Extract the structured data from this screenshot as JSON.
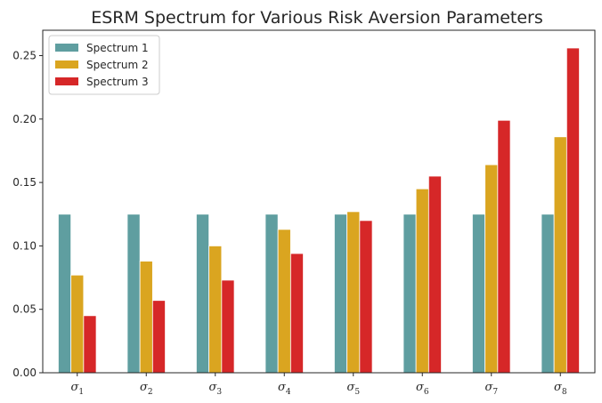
{
  "chart_data": {
    "type": "bar",
    "title": "ESRM Spectrum for Various Risk Aversion Parameters",
    "xlabel": "",
    "ylabel": "",
    "categories": [
      {
        "symbol": "σ",
        "sub": "1"
      },
      {
        "symbol": "σ",
        "sub": "2"
      },
      {
        "symbol": "σ",
        "sub": "3"
      },
      {
        "symbol": "σ",
        "sub": "4"
      },
      {
        "symbol": "σ",
        "sub": "5"
      },
      {
        "symbol": "σ",
        "sub": "6"
      },
      {
        "symbol": "σ",
        "sub": "7"
      },
      {
        "symbol": "σ",
        "sub": "8"
      }
    ],
    "series": [
      {
        "name": "Spectrum 1",
        "color": "#5f9ea0",
        "values": [
          0.125,
          0.125,
          0.125,
          0.125,
          0.125,
          0.125,
          0.125,
          0.125
        ]
      },
      {
        "name": "Spectrum 2",
        "color": "#daa520",
        "values": [
          0.077,
          0.088,
          0.1,
          0.113,
          0.127,
          0.145,
          0.164,
          0.186
        ]
      },
      {
        "name": "Spectrum 3",
        "color": "#d62728",
        "values": [
          0.045,
          0.057,
          0.073,
          0.094,
          0.12,
          0.155,
          0.199,
          0.256
        ]
      }
    ],
    "ylim": [
      0,
      0.27
    ],
    "yticks": [
      "0.00",
      "0.05",
      "0.10",
      "0.15",
      "0.20",
      "0.25"
    ],
    "grid": false,
    "legend_position": "upper-left"
  }
}
